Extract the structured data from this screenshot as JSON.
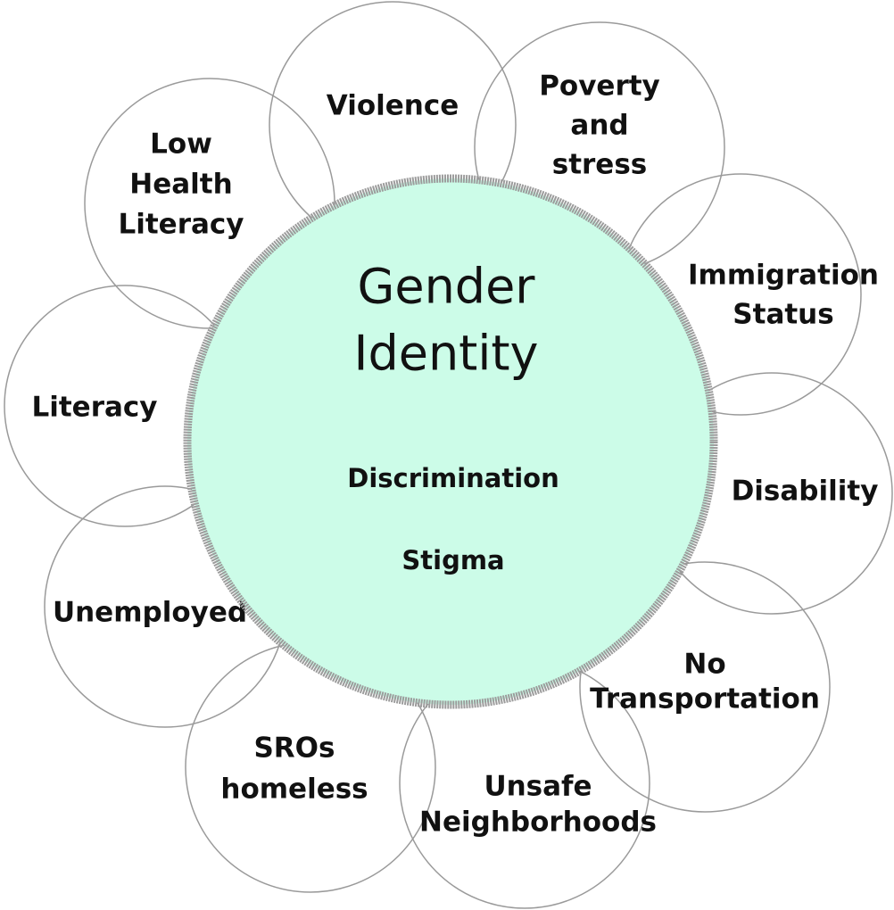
{
  "center": {
    "title_lines": [
      "Gender",
      "Identity"
    ],
    "items": [
      "Discrimination",
      "Stigma"
    ]
  },
  "nodes": [
    {
      "lines": [
        "Violence"
      ]
    },
    {
      "lines": [
        "Poverty",
        "and",
        "stress"
      ]
    },
    {
      "lines": [
        "Low",
        "Health",
        "Literacy"
      ]
    },
    {
      "lines": [
        "Immigration",
        "Status"
      ]
    },
    {
      "lines": [
        "Literacy"
      ]
    },
    {
      "lines": [
        "Disability"
      ]
    },
    {
      "lines": [
        "Unemployed"
      ]
    },
    {
      "lines": [
        "No",
        "Transportation"
      ]
    },
    {
      "lines": [
        "SROs",
        "homeless"
      ]
    },
    {
      "lines": [
        "Unsafe",
        "Neighborhoods"
      ]
    }
  ]
}
